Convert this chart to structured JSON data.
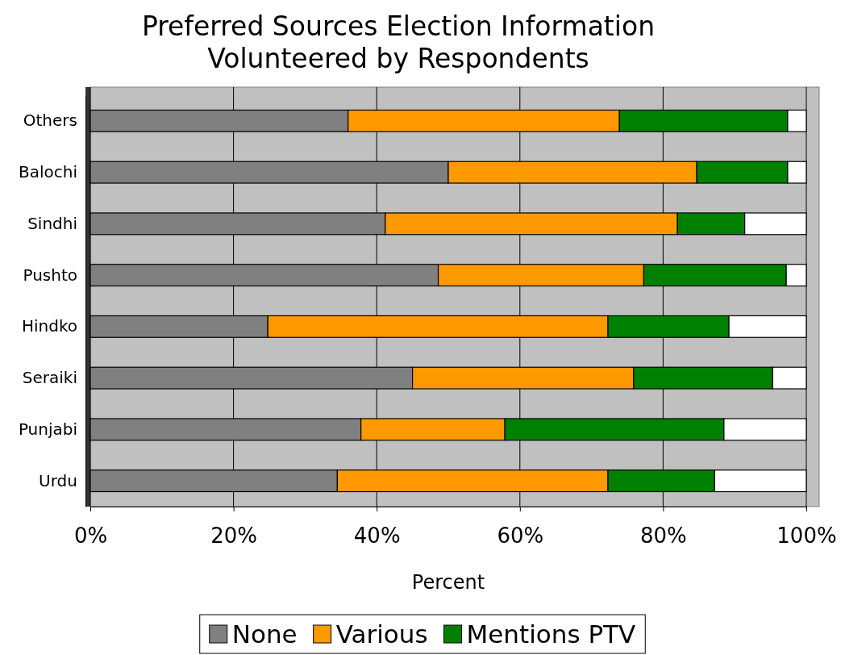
{
  "chart_data": {
    "type": "bar",
    "orientation": "horizontal",
    "stacked": true,
    "title": "Preferred Sources Election Information Volunteered by Respondents",
    "xlabel": "Percent",
    "categories": [
      "Others",
      "Balochi",
      "Sindhi",
      "Pushto",
      "Hindko",
      "Seraiki",
      "Punjabi",
      "Urdu"
    ],
    "series": [
      {
        "name": "None",
        "color": "#808080",
        "values": [
          36.0,
          50.0,
          41.2,
          48.6,
          24.8,
          45.0,
          37.8,
          34.5
        ]
      },
      {
        "name": "Various",
        "color": "#ff9900",
        "values": [
          37.9,
          34.7,
          40.8,
          28.7,
          47.5,
          30.9,
          20.1,
          37.8
        ]
      },
      {
        "name": "Mentions PTV",
        "color": "#008000",
        "values": [
          23.5,
          12.7,
          9.4,
          19.9,
          16.9,
          19.4,
          30.6,
          14.9
        ]
      },
      {
        "color": "#ffffff",
        "values": [
          2.6,
          2.6,
          8.6,
          2.8,
          10.8,
          4.7,
          11.5,
          12.8
        ]
      }
    ],
    "xlim": [
      0,
      100
    ],
    "xticks": [
      {
        "value": 0,
        "label": "0%"
      },
      {
        "value": 20,
        "label": "20%"
      },
      {
        "value": 40,
        "label": "40%"
      },
      {
        "value": 60,
        "label": "60%"
      },
      {
        "value": 80,
        "label": "80%"
      },
      {
        "value": 100,
        "label": "100%"
      }
    ],
    "grid": "x",
    "legend": "bottom"
  }
}
